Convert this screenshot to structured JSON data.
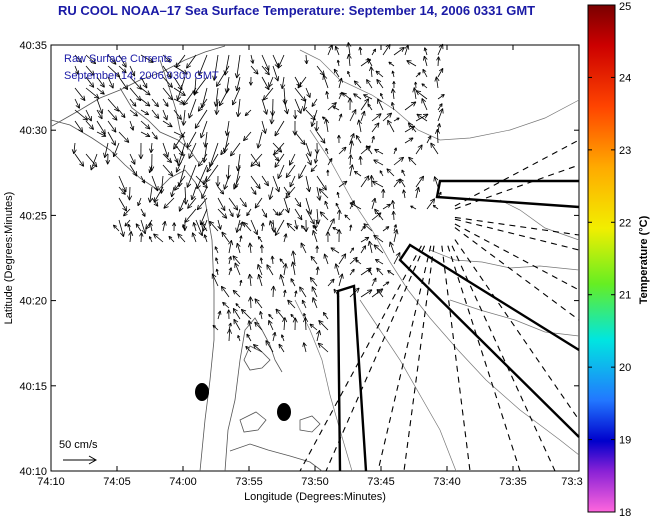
{
  "title": "RU COOL  NOAA–17  Sea Surface Temperature:  September 14, 2006 0331 GMT",
  "map": {
    "subtitle_line1": "Raw Surface Currents",
    "subtitle_line2": "September 14, 2006 0300 GMT",
    "x_label": "Longitude (Degrees:Minutes)",
    "y_label": "Latitude (Degrees:Minutes)",
    "x_ticks": [
      "74:10",
      "74:05",
      "74:00",
      "73:55",
      "73:50",
      "73:45",
      "73:40",
      "73:35",
      "73:3"
    ],
    "y_ticks": [
      "40:35",
      "40:30",
      "40:25",
      "40:20",
      "40:15",
      "40:10"
    ],
    "scale_label": "50 cm/s",
    "lon_range": [
      "74:10",
      "73:30"
    ],
    "lat_range": [
      "40:10",
      "40:35"
    ]
  },
  "colorbar": {
    "title": "Temperature (°C)",
    "ticks": [
      "25",
      "24",
      "23",
      "22",
      "21",
      "20",
      "19",
      "18"
    ],
    "range": [
      18,
      25
    ]
  }
}
